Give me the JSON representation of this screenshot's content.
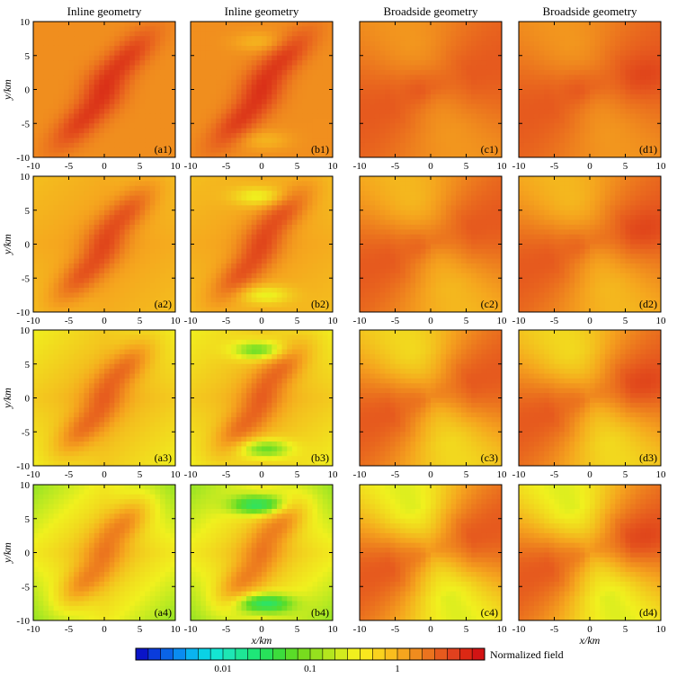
{
  "chart_data": {
    "type": "heatmap",
    "column_titles": [
      "Inline geometry",
      "Inline geometry",
      "Broadside geometry",
      "Broadside geometry"
    ],
    "xlabel": "x/km",
    "ylabel": "y/km",
    "xlim": [
      -10,
      10
    ],
    "ylim": [
      -10,
      10
    ],
    "x_ticks": [
      -10,
      -5,
      0,
      5,
      10
    ],
    "y_ticks": [
      -10,
      -5,
      0,
      5,
      10
    ],
    "panels": [
      {
        "label": "(a1)",
        "geometry": "inline",
        "row": 1,
        "col": 1
      },
      {
        "label": "(b1)",
        "geometry": "inline",
        "row": 1,
        "col": 2
      },
      {
        "label": "(c1)",
        "geometry": "broadside",
        "row": 1,
        "col": 3
      },
      {
        "label": "(d1)",
        "geometry": "broadside",
        "row": 1,
        "col": 4
      },
      {
        "label": "(a2)",
        "geometry": "inline",
        "row": 2,
        "col": 1
      },
      {
        "label": "(b2)",
        "geometry": "inline",
        "row": 2,
        "col": 2
      },
      {
        "label": "(c2)",
        "geometry": "broadside",
        "row": 2,
        "col": 3
      },
      {
        "label": "(d2)",
        "geometry": "broadside",
        "row": 2,
        "col": 4
      },
      {
        "label": "(a3)",
        "geometry": "inline",
        "row": 3,
        "col": 1
      },
      {
        "label": "(b3)",
        "geometry": "inline",
        "row": 3,
        "col": 2
      },
      {
        "label": "(c3)",
        "geometry": "broadside",
        "row": 3,
        "col": 3
      },
      {
        "label": "(d3)",
        "geometry": "broadside",
        "row": 3,
        "col": 4
      },
      {
        "label": "(a4)",
        "geometry": "inline",
        "row": 4,
        "col": 1
      },
      {
        "label": "(b4)",
        "geometry": "inline",
        "row": 4,
        "col": 2
      },
      {
        "label": "(c4)",
        "geometry": "broadside",
        "row": 4,
        "col": 3
      },
      {
        "label": "(d4)",
        "geometry": "broadside",
        "row": 4,
        "col": 4
      }
    ],
    "colorbar": {
      "label": "Normalized field",
      "scale": "log",
      "range": [
        0.001,
        10
      ],
      "tick_labels": [
        "0.01",
        "0.1",
        "1"
      ],
      "tick_values": [
        0.01,
        0.1,
        1
      ],
      "colors": [
        "#0a14c8",
        "#0a3cdc",
        "#0a64e6",
        "#0a8cf0",
        "#0ab4f0",
        "#0ad2e6",
        "#14e6d2",
        "#1ee6b4",
        "#1ee696",
        "#1ee678",
        "#28e15a",
        "#3cdc3c",
        "#5adc28",
        "#78dc1e",
        "#96e11e",
        "#b4e61e",
        "#d2eb1e",
        "#f0f01e",
        "#fae61e",
        "#fad21e",
        "#fabe1e",
        "#f5a51e",
        "#f08c1e",
        "#eb731e",
        "#e65a1e",
        "#e1411e",
        "#dc2814",
        "#d21414"
      ],
      "cmap_stops": [
        "#0a14c8",
        "#0a8cf0",
        "#14e6d2",
        "#1ee678",
        "#5adc28",
        "#f0f01e",
        "#f5a51e",
        "#e65a1e",
        "#d21414"
      ]
    }
  }
}
